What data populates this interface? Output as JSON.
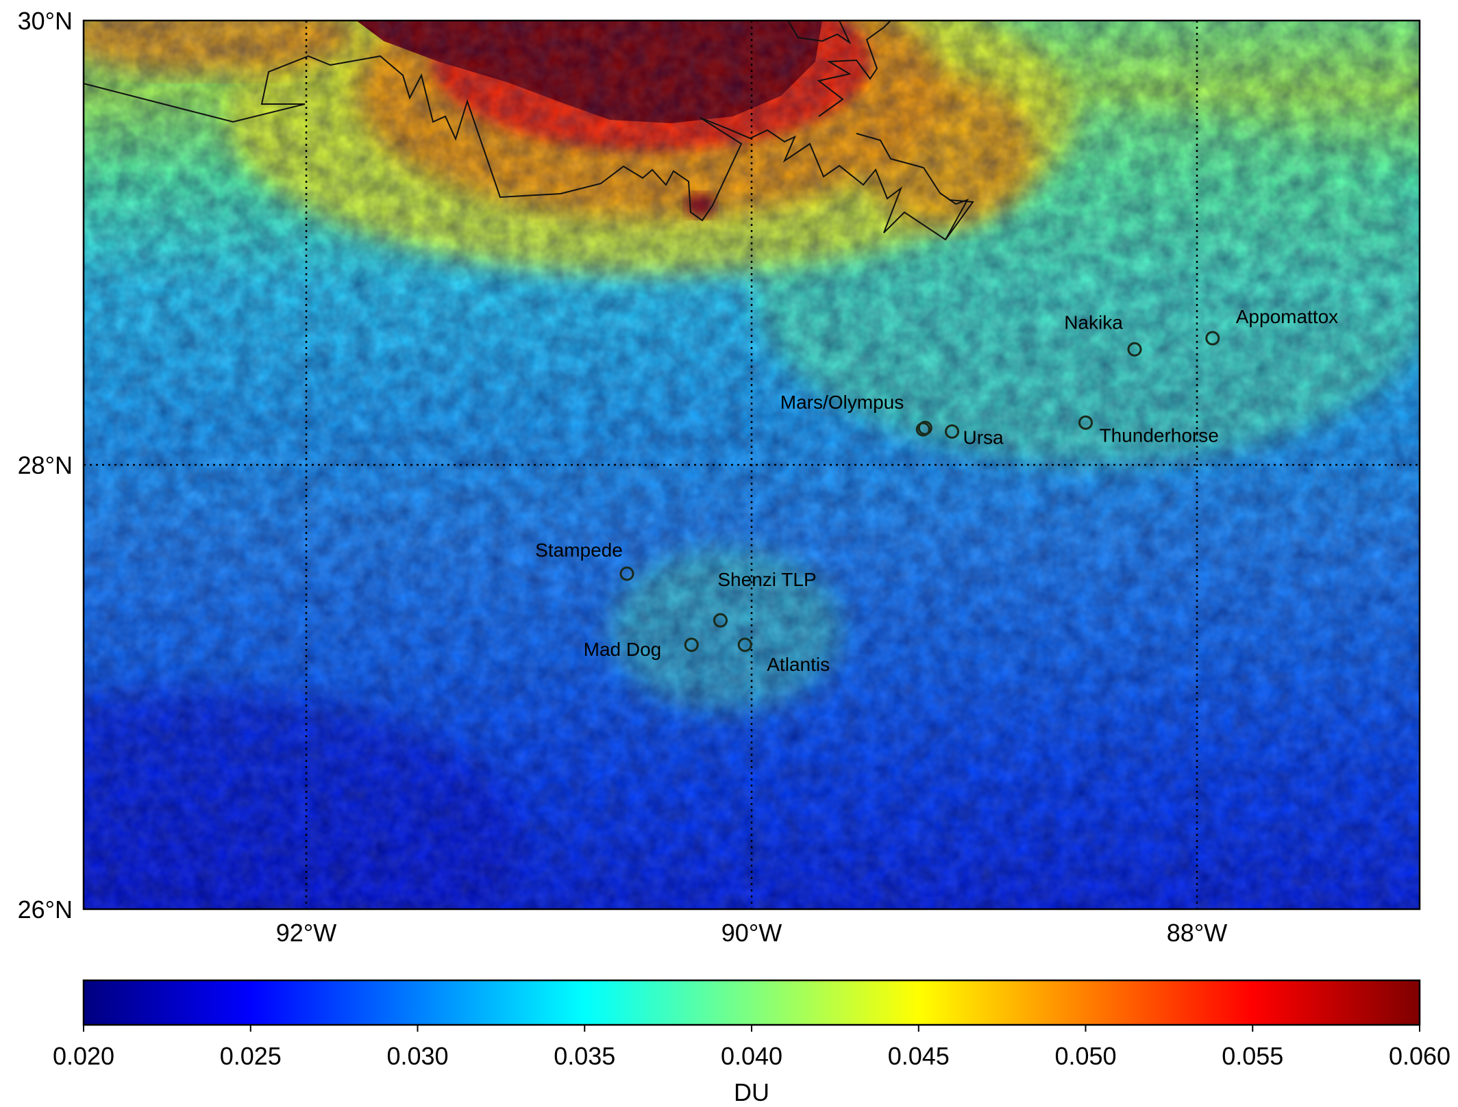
{
  "map": {
    "lat_ticks": [
      {
        "value": 30,
        "label": "30°N"
      },
      {
        "value": 28,
        "label": "28°N"
      },
      {
        "value": 26,
        "label": "26°N"
      }
    ],
    "lon_ticks": [
      {
        "value": -92,
        "label": "92°W"
      },
      {
        "value": -90,
        "label": "90°W"
      },
      {
        "value": -88,
        "label": "88°W"
      }
    ],
    "lon_range": [
      -93.0,
      -87.0
    ],
    "lat_range": [
      26.0,
      30.0
    ],
    "field_description": "gridded column values in DU, high near the coast (north), decreasing southward",
    "sites": [
      {
        "name": "Appomattox",
        "label": "Appomattox",
        "lon": -87.93,
        "lat": 28.57
      },
      {
        "name": "Nakika",
        "label": "Nakika",
        "lon": -88.28,
        "lat": 28.52
      },
      {
        "name": "Mars/Olympus",
        "label": "Mars/Olympus",
        "lon": -89.23,
        "lat": 28.16
      },
      {
        "name": "Ursa",
        "label": "Ursa",
        "lon": -89.1,
        "lat": 28.15
      },
      {
        "name": "Thunderhorse",
        "label": "Thunderhorse",
        "lon": -88.5,
        "lat": 28.19
      },
      {
        "name": "Stampede",
        "label": "Stampede",
        "lon": -90.56,
        "lat": 27.51
      },
      {
        "name": "Shenzi TLP",
        "label": "Shenzi TLP",
        "lon": -90.14,
        "lat": 27.3
      },
      {
        "name": "Mad Dog",
        "label": "Mad Dog",
        "lon": -90.27,
        "lat": 27.19
      },
      {
        "name": "Atlantis",
        "label": "Atlantis",
        "lon": -90.03,
        "lat": 27.19
      }
    ]
  },
  "colorbar": {
    "colormap": "jet",
    "range": [
      0.02,
      0.06
    ],
    "ticks": [
      "0.020",
      "0.025",
      "0.030",
      "0.035",
      "0.040",
      "0.045",
      "0.050",
      "0.055",
      "0.060"
    ],
    "label": "DU",
    "colors": [
      "#00007f",
      "#0000ff",
      "#007fff",
      "#00ffff",
      "#7fff7f",
      "#ffff00",
      "#ff7f00",
      "#ff0000",
      "#7f0000"
    ]
  }
}
